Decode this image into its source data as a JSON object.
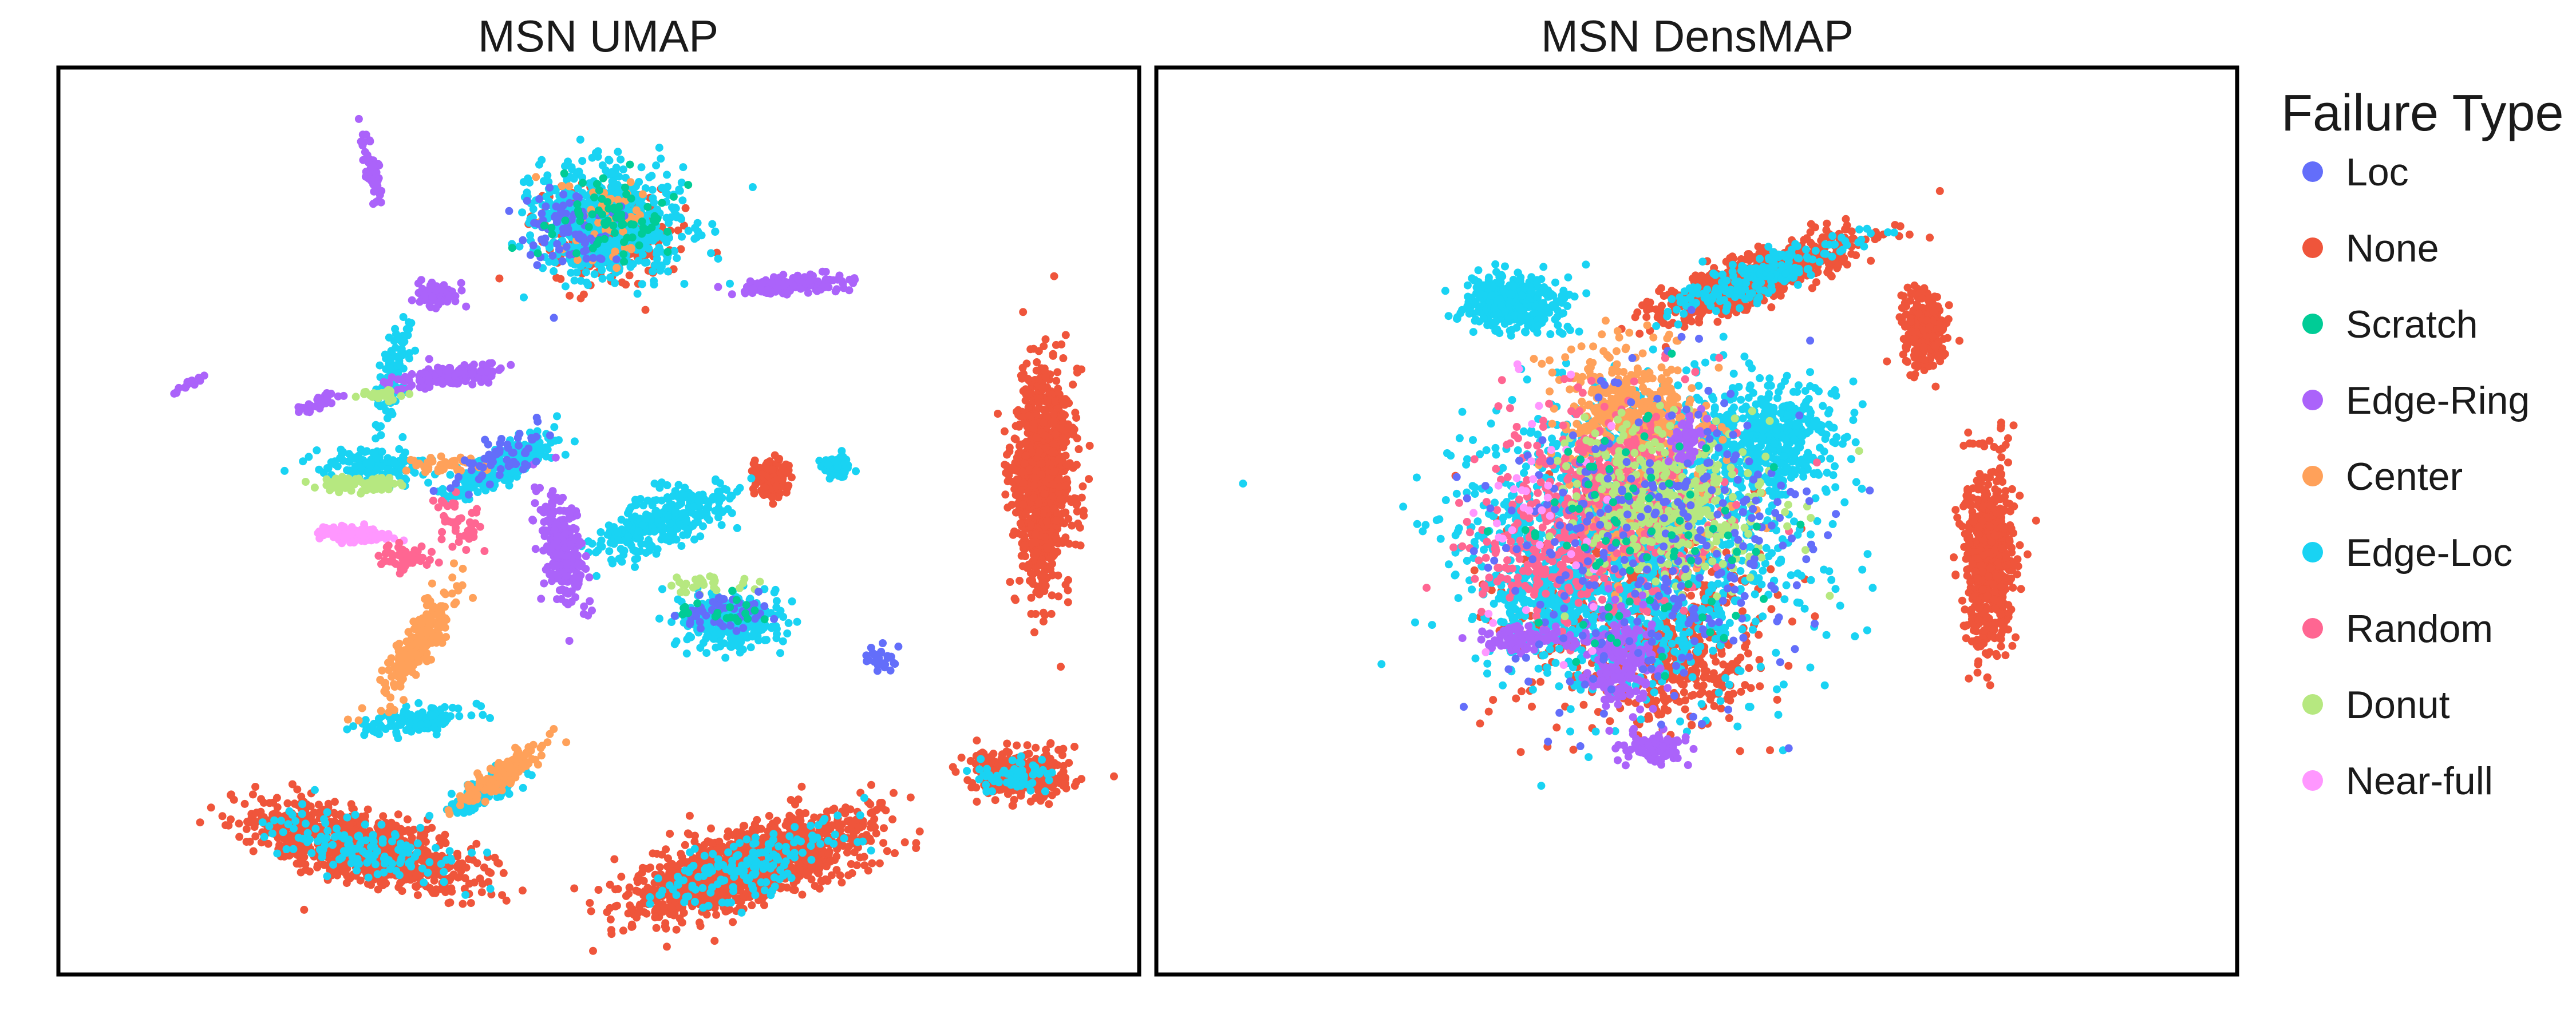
{
  "legend": {
    "title": "Failure Type",
    "items": [
      {
        "label": "Loc",
        "color": "#636efa"
      },
      {
        "label": "None",
        "color": "#ef553b"
      },
      {
        "label": "Scratch",
        "color": "#00cc96"
      },
      {
        "label": "Edge-Ring",
        "color": "#ab63fa"
      },
      {
        "label": "Center",
        "color": "#ffa15a"
      },
      {
        "label": "Edge-Loc",
        "color": "#19d3f3"
      },
      {
        "label": "Random",
        "color": "#ff6692"
      },
      {
        "label": "Donut",
        "color": "#b6e880"
      },
      {
        "label": "Near-full",
        "color": "#ff97ff"
      }
    ]
  },
  "chart_data": [
    {
      "type": "scatter",
      "title": "MSN UMAP",
      "xlabel": "",
      "ylabel": "",
      "axes_visible": false,
      "grid": false,
      "xlim": [
        0,
        100
      ],
      "ylim": [
        0,
        100
      ],
      "legend_position": "right",
      "series": [
        {
          "name": "None",
          "clusters": [
            {
              "cx": 91,
              "cy": 55,
              "rx": 2.6,
              "ry": 11.5,
              "n": 1100
            },
            {
              "cx": 64,
              "cy": 12,
              "rx": 11,
              "ry": 3.8,
              "rot": 22,
              "n": 1300
            },
            {
              "cx": 28,
              "cy": 14,
              "rx": 10,
              "ry": 3.4,
              "rot": -18,
              "n": 1000
            },
            {
              "cx": 89,
              "cy": 22,
              "rx": 4.5,
              "ry": 2.6,
              "rot": -8,
              "n": 380
            },
            {
              "cx": 66,
              "cy": 55,
              "rx": 1.8,
              "ry": 2.2,
              "n": 120
            },
            {
              "cx": 51,
              "cy": 81,
              "rx": 6,
              "ry": 5,
              "n": 260
            }
          ]
        },
        {
          "name": "Edge-Loc",
          "clusters": [
            {
              "cx": 51,
              "cy": 83,
              "rx": 7,
              "ry": 6,
              "n": 650
            },
            {
              "cx": 62,
              "cy": 39,
              "rx": 4.5,
              "ry": 2.8,
              "n": 300
            },
            {
              "cx": 56,
              "cy": 50,
              "rx": 7,
              "ry": 2.8,
              "rot": 25,
              "n": 320
            },
            {
              "cx": 41,
              "cy": 56,
              "rx": 6,
              "ry": 1.6,
              "rot": 35,
              "n": 220
            },
            {
              "cx": 64,
              "cy": 12,
              "rx": 10,
              "ry": 3,
              "rot": 22,
              "n": 160
            },
            {
              "cx": 28,
              "cy": 14,
              "rx": 9,
              "ry": 3,
              "rot": -18,
              "n": 140
            },
            {
              "cx": 33,
              "cy": 28,
              "rx": 5,
              "ry": 1.4,
              "rot": 10,
              "n": 120
            },
            {
              "cx": 39,
              "cy": 20,
              "rx": 4,
              "ry": 1.5,
              "rot": 30,
              "n": 120
            },
            {
              "cx": 72,
              "cy": 56,
              "rx": 1.2,
              "ry": 1.5,
              "n": 70
            },
            {
              "cx": 29,
              "cy": 56,
              "rx": 6,
              "ry": 1.8,
              "rot": -4,
              "n": 130
            },
            {
              "cx": 89,
              "cy": 22,
              "rx": 3.5,
              "ry": 2,
              "n": 60
            },
            {
              "cx": 31,
              "cy": 66,
              "rx": 1.2,
              "ry": 7,
              "rot": -10,
              "n": 90
            }
          ]
        },
        {
          "name": "Edge-Ring",
          "clusters": [
            {
              "cx": 46.5,
              "cy": 47,
              "rx": 1.8,
              "ry": 6,
              "rot": 10,
              "n": 260
            },
            {
              "cx": 36,
              "cy": 66,
              "rx": 5,
              "ry": 1.1,
              "rot": 8,
              "n": 160
            },
            {
              "cx": 68,
              "cy": 76,
              "rx": 5,
              "ry": 0.9,
              "rot": 5,
              "n": 160
            },
            {
              "cx": 29,
              "cy": 89,
              "rx": 0.7,
              "ry": 3.8,
              "rot": 10,
              "n": 60
            },
            {
              "cx": 35,
              "cy": 75,
              "rx": 2,
              "ry": 1.3,
              "n": 60
            },
            {
              "cx": 24,
              "cy": 63,
              "rx": 2.2,
              "ry": 0.6,
              "rot": 30,
              "n": 30
            },
            {
              "cx": 12,
              "cy": 65,
              "rx": 1.2,
              "ry": 0.4,
              "rot": 30,
              "n": 15
            }
          ]
        },
        {
          "name": "Center",
          "clusters": [
            {
              "cx": 33,
              "cy": 36,
              "rx": 1.5,
              "ry": 7,
              "rot": -30,
              "n": 220
            },
            {
              "cx": 41,
              "cy": 22,
              "rx": 5,
              "ry": 1.2,
              "rot": 40,
              "n": 150
            },
            {
              "cx": 36,
              "cy": 56,
              "rx": 3,
              "ry": 1,
              "n": 40
            },
            {
              "cx": 51,
              "cy": 83,
              "rx": 6,
              "ry": 5,
              "n": 50
            }
          ]
        },
        {
          "name": "Donut",
          "clusters": [
            {
              "cx": 28,
              "cy": 54,
              "rx": 4,
              "ry": 0.8,
              "n": 80
            },
            {
              "cx": 30,
              "cy": 64,
              "rx": 2,
              "ry": 0.7,
              "n": 30
            },
            {
              "cx": 60,
              "cy": 43,
              "rx": 4,
              "ry": 1,
              "n": 30
            }
          ]
        },
        {
          "name": "Near-full",
          "clusters": [
            {
              "cx": 27.5,
              "cy": 48.5,
              "rx": 3.2,
              "ry": 0.9,
              "rot": -5,
              "n": 110
            }
          ]
        },
        {
          "name": "Random",
          "clusters": [
            {
              "cx": 32,
              "cy": 46,
              "rx": 2.2,
              "ry": 1.4,
              "n": 70
            },
            {
              "cx": 37,
              "cy": 50,
              "rx": 2.5,
              "ry": 3.5,
              "n": 40
            }
          ]
        },
        {
          "name": "Loc",
          "clusters": [
            {
              "cx": 47,
              "cy": 82,
              "rx": 4,
              "ry": 4,
              "n": 80
            },
            {
              "cx": 41,
              "cy": 57,
              "rx": 5,
              "ry": 2,
              "rot": 30,
              "n": 60
            },
            {
              "cx": 62,
              "cy": 40,
              "rx": 4,
              "ry": 2,
              "n": 50
            },
            {
              "cx": 76,
              "cy": 35,
              "rx": 1.5,
              "ry": 1.5,
              "n": 25
            }
          ]
        },
        {
          "name": "Scratch",
          "clusters": [
            {
              "cx": 51,
              "cy": 83,
              "rx": 6,
              "ry": 5,
              "n": 70
            },
            {
              "cx": 62,
              "cy": 40,
              "rx": 4,
              "ry": 2,
              "n": 20
            }
          ]
        }
      ]
    },
    {
      "type": "scatter",
      "title": "MSN DensMAP",
      "xlabel": "",
      "ylabel": "",
      "axes_visible": false,
      "grid": false,
      "xlim": [
        0,
        100
      ],
      "ylim": [
        0,
        100
      ],
      "legend_position": "right",
      "series": [
        {
          "name": "None",
          "clusters": [
            {
              "cx": 77,
              "cy": 46,
              "rx": 2.3,
              "ry": 10,
              "n": 650
            },
            {
              "cx": 71,
              "cy": 71,
              "rx": 2,
              "ry": 4,
              "n": 300
            },
            {
              "cx": 56,
              "cy": 77,
              "rx": 10,
              "ry": 2.4,
              "rot": 25,
              "n": 700
            },
            {
              "cx": 44,
              "cy": 40,
              "rx": 12,
              "ry": 12,
              "n": 480
            },
            {
              "cx": 49,
              "cy": 34,
              "rx": 6,
              "ry": 6,
              "n": 200
            }
          ]
        },
        {
          "name": "Edge-Loc",
          "clusters": [
            {
              "cx": 44,
              "cy": 48,
              "rx": 15,
              "ry": 16,
              "n": 1500
            },
            {
              "cx": 33,
              "cy": 74,
              "rx": 4.5,
              "ry": 3,
              "n": 380
            },
            {
              "cx": 57,
              "cy": 59,
              "rx": 6,
              "ry": 6,
              "n": 420
            },
            {
              "cx": 56,
              "cy": 77,
              "rx": 9,
              "ry": 2,
              "rot": 25,
              "n": 220
            },
            {
              "cx": 36,
              "cy": 41,
              "rx": 4,
              "ry": 4,
              "n": 150
            }
          ]
        },
        {
          "name": "Center",
          "clusters": [
            {
              "cx": 44,
              "cy": 62,
              "rx": 6,
              "ry": 7,
              "rot": 30,
              "n": 420
            },
            {
              "cx": 46,
              "cy": 52,
              "rx": 8,
              "ry": 8,
              "n": 150
            }
          ]
        },
        {
          "name": "Random",
          "clusters": [
            {
              "cx": 42,
              "cy": 52,
              "rx": 10,
              "ry": 11,
              "n": 500
            },
            {
              "cx": 35,
              "cy": 45,
              "rx": 6,
              "ry": 6,
              "n": 120
            }
          ]
        },
        {
          "name": "Donut",
          "clusters": [
            {
              "cx": 48,
              "cy": 52,
              "rx": 9,
              "ry": 9,
              "n": 400
            }
          ]
        },
        {
          "name": "Edge-Ring",
          "clusters": [
            {
              "cx": 43,
              "cy": 35,
              "rx": 3,
              "ry": 5,
              "n": 220
            },
            {
              "cx": 34,
              "cy": 37,
              "rx": 4,
              "ry": 1.1,
              "n": 120
            },
            {
              "cx": 46,
              "cy": 25,
              "rx": 3,
              "ry": 1.5,
              "n": 100
            },
            {
              "cx": 49,
              "cy": 59,
              "rx": 1.5,
              "ry": 3,
              "n": 60
            }
          ]
        },
        {
          "name": "Loc",
          "clusters": [
            {
              "cx": 46,
              "cy": 48,
              "rx": 15,
              "ry": 18,
              "n": 320
            }
          ]
        },
        {
          "name": "Near-full",
          "clusters": [
            {
              "cx": 35,
              "cy": 50,
              "rx": 8,
              "ry": 15,
              "n": 40
            }
          ]
        },
        {
          "name": "Scratch",
          "clusters": [
            {
              "cx": 46,
              "cy": 48,
              "rx": 12,
              "ry": 14,
              "n": 80
            }
          ]
        }
      ]
    }
  ]
}
